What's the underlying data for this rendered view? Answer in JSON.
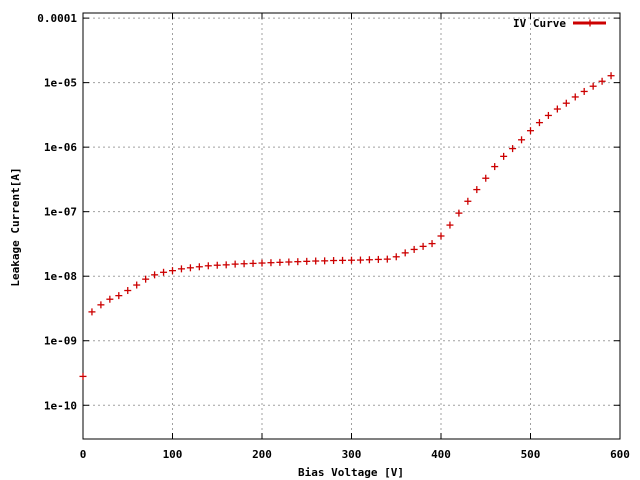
{
  "chart_data": {
    "type": "scatter",
    "title": "",
    "xlabel": "Bias Voltage [V]",
    "ylabel": "Leakage Current[A]",
    "xlim": [
      0,
      600
    ],
    "ylim": [
      3e-11,
      0.00012
    ],
    "y_scale": "log",
    "grid": true,
    "legend_position": "top-right",
    "x_ticks": [
      {
        "value": 0,
        "label": "0"
      },
      {
        "value": 100,
        "label": "100"
      },
      {
        "value": 200,
        "label": "200"
      },
      {
        "value": 300,
        "label": "300"
      },
      {
        "value": 400,
        "label": "400"
      },
      {
        "value": 500,
        "label": "500"
      },
      {
        "value": 600,
        "label": "600"
      }
    ],
    "y_ticks": [
      {
        "value": 1e-10,
        "label": "1e-10"
      },
      {
        "value": 1e-09,
        "label": "1e-09"
      },
      {
        "value": 1e-08,
        "label": "1e-08"
      },
      {
        "value": 1e-07,
        "label": "1e-07"
      },
      {
        "value": 1e-06,
        "label": "1e-06"
      },
      {
        "value": 1e-05,
        "label": "1e-05"
      },
      {
        "value": 0.0001,
        "label": "0.0001"
      }
    ],
    "series": [
      {
        "name": "IV Curve",
        "color": "#cc0000",
        "marker": "plus",
        "x": [
          0,
          10,
          20,
          30,
          40,
          50,
          60,
          70,
          80,
          90,
          100,
          110,
          120,
          130,
          140,
          150,
          160,
          170,
          180,
          190,
          200,
          210,
          220,
          230,
          240,
          250,
          260,
          270,
          280,
          290,
          300,
          310,
          320,
          330,
          340,
          350,
          360,
          370,
          380,
          390,
          400,
          410,
          420,
          430,
          440,
          450,
          460,
          470,
          480,
          490,
          500,
          510,
          520,
          530,
          540,
          550,
          560,
          570,
          580,
          590
        ],
        "y": [
          2.8e-10,
          2.8e-09,
          3.6e-09,
          4.4e-09,
          5e-09,
          6e-09,
          7.3e-09,
          9e-09,
          1.05e-08,
          1.15e-08,
          1.22e-08,
          1.3e-08,
          1.35e-08,
          1.4e-08,
          1.45e-08,
          1.48e-08,
          1.5e-08,
          1.54e-08,
          1.56e-08,
          1.58e-08,
          1.6e-08,
          1.62e-08,
          1.64e-08,
          1.66e-08,
          1.68e-08,
          1.7e-08,
          1.72e-08,
          1.73e-08,
          1.75e-08,
          1.76e-08,
          1.77e-08,
          1.78e-08,
          1.8e-08,
          1.82e-08,
          1.84e-08,
          2e-08,
          2.3e-08,
          2.6e-08,
          2.9e-08,
          3.2e-08,
          4.2e-08,
          6.2e-08,
          9.5e-08,
          1.45e-07,
          2.2e-07,
          3.3e-07,
          5e-07,
          7.2e-07,
          9.5e-07,
          1.3e-06,
          1.8e-06,
          2.4e-06,
          3.1e-06,
          3.9e-06,
          4.8e-06,
          6e-06,
          7.3e-06,
          8.8e-06,
          1.05e-05,
          1.28e-05
        ]
      }
    ]
  }
}
